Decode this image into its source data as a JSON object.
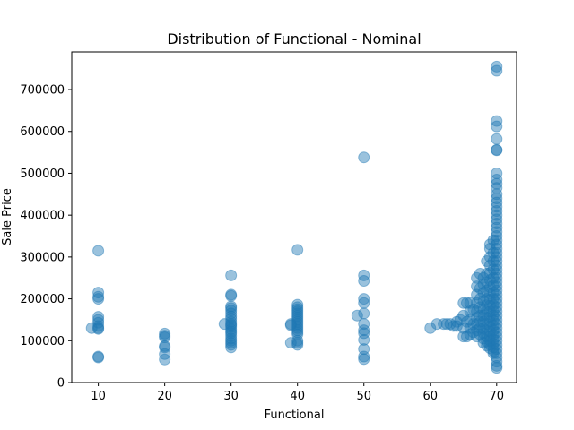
{
  "chart_data": {
    "type": "scatter",
    "title": "Distribution of Functional - Nominal",
    "xlabel": "Functional",
    "ylabel": "Sale Price",
    "xlim": [
      6,
      73
    ],
    "ylim": [
      0,
      790000
    ],
    "x_ticks": [
      10,
      20,
      30,
      40,
      50,
      60,
      70
    ],
    "y_ticks": [
      0,
      100000,
      200000,
      300000,
      400000,
      500000,
      600000,
      700000
    ],
    "grid": false,
    "legend": "none",
    "marker_color": "#1f77b4",
    "marker_alpha": 0.45,
    "points": [
      [
        10,
        315000
      ],
      [
        10,
        215000
      ],
      [
        10,
        205000
      ],
      [
        10,
        200000
      ],
      [
        10,
        157000
      ],
      [
        10,
        150000
      ],
      [
        10,
        143000
      ],
      [
        10,
        135000
      ],
      [
        10,
        130000
      ],
      [
        10,
        128000
      ],
      [
        9,
        130000
      ],
      [
        10,
        62000
      ],
      [
        10,
        60000
      ],
      [
        20,
        117000
      ],
      [
        20,
        112000
      ],
      [
        20,
        108000
      ],
      [
        20,
        87000
      ],
      [
        20,
        84000
      ],
      [
        20,
        68000
      ],
      [
        20,
        55000
      ],
      [
        30,
        256000
      ],
      [
        30,
        210000
      ],
      [
        30,
        207000
      ],
      [
        30,
        182000
      ],
      [
        30,
        178000
      ],
      [
        30,
        172000
      ],
      [
        30,
        165000
      ],
      [
        30,
        158000
      ],
      [
        30,
        152000
      ],
      [
        30,
        145000
      ],
      [
        30,
        140000
      ],
      [
        30,
        137000
      ],
      [
        30,
        133000
      ],
      [
        30,
        127000
      ],
      [
        30,
        122000
      ],
      [
        30,
        118000
      ],
      [
        30,
        112000
      ],
      [
        30,
        105000
      ],
      [
        30,
        100000
      ],
      [
        30,
        95000
      ],
      [
        30,
        90000
      ],
      [
        30,
        84000
      ],
      [
        29,
        140000
      ],
      [
        40,
        317000
      ],
      [
        40,
        186000
      ],
      [
        40,
        180000
      ],
      [
        40,
        175000
      ],
      [
        40,
        170000
      ],
      [
        40,
        165000
      ],
      [
        40,
        160000
      ],
      [
        40,
        155000
      ],
      [
        40,
        150000
      ],
      [
        40,
        145000
      ],
      [
        40,
        140000
      ],
      [
        40,
        135000
      ],
      [
        40,
        130000
      ],
      [
        40,
        125000
      ],
      [
        40,
        120000
      ],
      [
        40,
        115000
      ],
      [
        40,
        100000
      ],
      [
        40,
        95000
      ],
      [
        40,
        90000
      ],
      [
        39,
        140000
      ],
      [
        39,
        137000
      ],
      [
        39,
        95000
      ],
      [
        50,
        538000
      ],
      [
        50,
        256000
      ],
      [
        50,
        243000
      ],
      [
        50,
        200000
      ],
      [
        50,
        190000
      ],
      [
        50,
        165000
      ],
      [
        49,
        160000
      ],
      [
        50,
        140000
      ],
      [
        50,
        125000
      ],
      [
        50,
        118000
      ],
      [
        50,
        102000
      ],
      [
        50,
        80000
      ],
      [
        50,
        62000
      ],
      [
        50,
        56000
      ],
      [
        60,
        130000
      ],
      [
        61,
        140000
      ],
      [
        62,
        140000
      ],
      [
        62.5,
        140000
      ],
      [
        63,
        140000
      ],
      [
        63.5,
        135000
      ],
      [
        64,
        145000
      ],
      [
        64,
        135000
      ],
      [
        64.5,
        150000
      ],
      [
        65,
        190000
      ],
      [
        65,
        160000
      ],
      [
        65,
        130000
      ],
      [
        65,
        110000
      ],
      [
        65.5,
        190000
      ],
      [
        65.5,
        145000
      ],
      [
        65.5,
        110000
      ],
      [
        66,
        190000
      ],
      [
        66,
        170000
      ],
      [
        66,
        150000
      ],
      [
        66,
        130000
      ],
      [
        66,
        115000
      ],
      [
        66.5,
        175000
      ],
      [
        66.5,
        140000
      ],
      [
        66.5,
        120000
      ],
      [
        67,
        250000
      ],
      [
        67,
        230000
      ],
      [
        67,
        210000
      ],
      [
        67,
        190000
      ],
      [
        67,
        170000
      ],
      [
        67,
        155000
      ],
      [
        67,
        140000
      ],
      [
        67,
        125000
      ],
      [
        67,
        110000
      ],
      [
        67.5,
        260000
      ],
      [
        67.5,
        225000
      ],
      [
        67.5,
        200000
      ],
      [
        67.5,
        180000
      ],
      [
        67.5,
        160000
      ],
      [
        67.5,
        145000
      ],
      [
        67.5,
        130000
      ],
      [
        67.5,
        115000
      ],
      [
        68,
        250000
      ],
      [
        68,
        235000
      ],
      [
        68,
        215000
      ],
      [
        68,
        195000
      ],
      [
        68,
        175000
      ],
      [
        68,
        160000
      ],
      [
        68,
        145000
      ],
      [
        68,
        130000
      ],
      [
        68,
        118000
      ],
      [
        68,
        105000
      ],
      [
        68,
        95000
      ],
      [
        68.5,
        290000
      ],
      [
        68.5,
        260000
      ],
      [
        68.5,
        240000
      ],
      [
        68.5,
        220000
      ],
      [
        68.5,
        200000
      ],
      [
        68.5,
        185000
      ],
      [
        68.5,
        170000
      ],
      [
        68.5,
        155000
      ],
      [
        68.5,
        140000
      ],
      [
        68.5,
        125000
      ],
      [
        68.5,
        110000
      ],
      [
        68.5,
        98000
      ],
      [
        68.5,
        88000
      ],
      [
        69,
        330000
      ],
      [
        69,
        320000
      ],
      [
        69,
        300000
      ],
      [
        69,
        280000
      ],
      [
        69,
        262000
      ],
      [
        69,
        245000
      ],
      [
        69,
        228000
      ],
      [
        69,
        212000
      ],
      [
        69,
        198000
      ],
      [
        69,
        184000
      ],
      [
        69,
        170000
      ],
      [
        69,
        158000
      ],
      [
        69,
        146000
      ],
      [
        69,
        134000
      ],
      [
        69,
        122000
      ],
      [
        69,
        110000
      ],
      [
        69,
        100000
      ],
      [
        69,
        90000
      ],
      [
        69,
        82000
      ],
      [
        69.5,
        340000
      ],
      [
        69.5,
        310000
      ],
      [
        69.5,
        290000
      ],
      [
        69.5,
        270000
      ],
      [
        69.5,
        250000
      ],
      [
        69.5,
        232000
      ],
      [
        69.5,
        215000
      ],
      [
        69.5,
        200000
      ],
      [
        69.5,
        185000
      ],
      [
        69.5,
        172000
      ],
      [
        69.5,
        160000
      ],
      [
        69.5,
        148000
      ],
      [
        69.5,
        136000
      ],
      [
        69.5,
        125000
      ],
      [
        69.5,
        114000
      ],
      [
        69.5,
        103000
      ],
      [
        69.5,
        93000
      ],
      [
        69.5,
        84000
      ],
      [
        69.5,
        76000
      ],
      [
        69.5,
        70000
      ],
      [
        70,
        755000
      ],
      [
        70,
        745000
      ],
      [
        70,
        625000
      ],
      [
        70,
        612000
      ],
      [
        70,
        582000
      ],
      [
        70,
        556000
      ],
      [
        70,
        555000
      ],
      [
        70,
        500000
      ],
      [
        70,
        485000
      ],
      [
        70,
        475000
      ],
      [
        70,
        465000
      ],
      [
        70,
        450000
      ],
      [
        70,
        440000
      ],
      [
        70,
        430000
      ],
      [
        70,
        420000
      ],
      [
        70,
        410000
      ],
      [
        70,
        400000
      ],
      [
        70,
        390000
      ],
      [
        70,
        380000
      ],
      [
        70,
        370000
      ],
      [
        70,
        360000
      ],
      [
        70,
        350000
      ],
      [
        70,
        340000
      ],
      [
        70,
        330000
      ],
      [
        70,
        320000
      ],
      [
        70,
        310000
      ],
      [
        70,
        300000
      ],
      [
        70,
        290000
      ],
      [
        70,
        280000
      ],
      [
        70,
        270000
      ],
      [
        70,
        260000
      ],
      [
        70,
        250000
      ],
      [
        70,
        240000
      ],
      [
        70,
        230000
      ],
      [
        70,
        220000
      ],
      [
        70,
        210000
      ],
      [
        70,
        200000
      ],
      [
        70,
        190000
      ],
      [
        70,
        180000
      ],
      [
        70,
        170000
      ],
      [
        70,
        160000
      ],
      [
        70,
        150000
      ],
      [
        70,
        140000
      ],
      [
        70,
        130000
      ],
      [
        70,
        120000
      ],
      [
        70,
        110000
      ],
      [
        70,
        100000
      ],
      [
        70,
        90000
      ],
      [
        70,
        80000
      ],
      [
        70,
        70000
      ],
      [
        70,
        60000
      ],
      [
        70,
        50000
      ],
      [
        70,
        40000
      ],
      [
        70,
        35000
      ]
    ]
  }
}
